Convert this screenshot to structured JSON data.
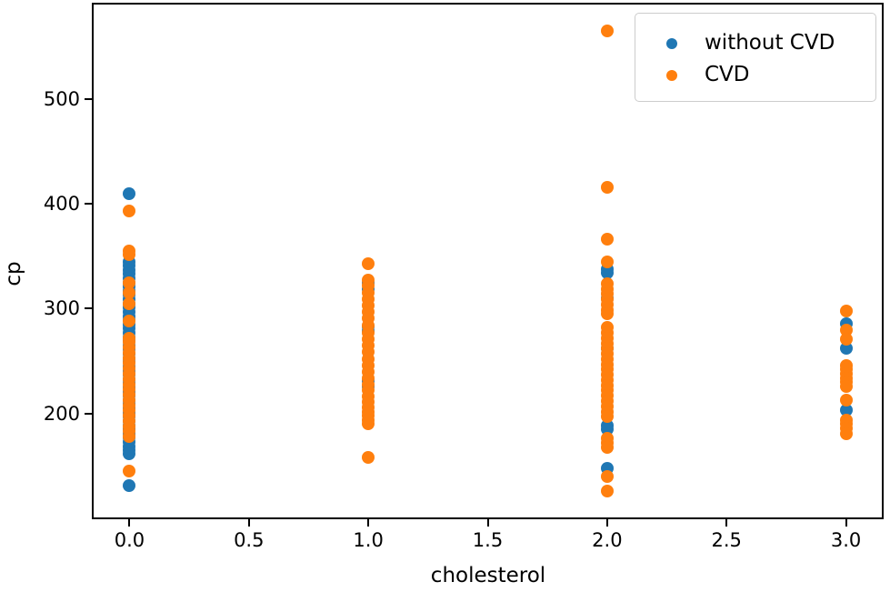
{
  "chart_data": {
    "type": "scatter",
    "title": "",
    "xlabel": "cholesterol",
    "ylabel": "cp",
    "xlim": [
      -0.15,
      3.15
    ],
    "ylim": [
      101,
      590
    ],
    "x_ticks": [
      0.0,
      0.5,
      1.0,
      1.5,
      2.0,
      2.5,
      3.0
    ],
    "x_tick_labels": [
      "0.0",
      "0.5",
      "1.0",
      "1.5",
      "2.0",
      "2.5",
      "3.0"
    ],
    "y_ticks": [
      200,
      300,
      400,
      500
    ],
    "y_tick_labels": [
      "200",
      "300",
      "400",
      "500"
    ],
    "grid": false,
    "legend_position": "upper right",
    "axis_color": "#000000",
    "legend_border_color": "#cccccc",
    "series": [
      {
        "name": "without CVD",
        "color": "#1f77b4",
        "points": [
          [
            0,
            410
          ],
          [
            0,
            345
          ],
          [
            0,
            341
          ],
          [
            0,
            337
          ],
          [
            0,
            333
          ],
          [
            0,
            329
          ],
          [
            0,
            325
          ],
          [
            0,
            321
          ],
          [
            0,
            317
          ],
          [
            0,
            313
          ],
          [
            0,
            309
          ],
          [
            0,
            305
          ],
          [
            0,
            301
          ],
          [
            0,
            297
          ],
          [
            0,
            293
          ],
          [
            0,
            289
          ],
          [
            0,
            285
          ],
          [
            0,
            281
          ],
          [
            0,
            277
          ],
          [
            0,
            273
          ],
          [
            0,
            269
          ],
          [
            0,
            265
          ],
          [
            0,
            261
          ],
          [
            0,
            257
          ],
          [
            0,
            253
          ],
          [
            0,
            249
          ],
          [
            0,
            245
          ],
          [
            0,
            241
          ],
          [
            0,
            237
          ],
          [
            0,
            233
          ],
          [
            0,
            229
          ],
          [
            0,
            225
          ],
          [
            0,
            221
          ],
          [
            0,
            217
          ],
          [
            0,
            213
          ],
          [
            0,
            209
          ],
          [
            0,
            205
          ],
          [
            0,
            201
          ],
          [
            0,
            197
          ],
          [
            0,
            193
          ],
          [
            0,
            189
          ],
          [
            0,
            185
          ],
          [
            0,
            181
          ],
          [
            0,
            177
          ],
          [
            0,
            173
          ],
          [
            0,
            169
          ],
          [
            0,
            165
          ],
          [
            0,
            162
          ],
          [
            0,
            131
          ],
          [
            1,
            325
          ],
          [
            1,
            319
          ],
          [
            1,
            283
          ],
          [
            1,
            279
          ],
          [
            1,
            231
          ],
          [
            1,
            226
          ],
          [
            2,
            338
          ],
          [
            2,
            334
          ],
          [
            2,
            310
          ],
          [
            2,
            262
          ],
          [
            2,
            189
          ],
          [
            2,
            185
          ],
          [
            2,
            148
          ],
          [
            3,
            286
          ],
          [
            3,
            262
          ],
          [
            3,
            203
          ]
        ]
      },
      {
        "name": "CVD",
        "color": "#ff7f0e",
        "points": [
          [
            0,
            393
          ],
          [
            0,
            355
          ],
          [
            0,
            352
          ],
          [
            0,
            325
          ],
          [
            0,
            315
          ],
          [
            0,
            305
          ],
          [
            0,
            288
          ],
          [
            0,
            272
          ],
          [
            0,
            268
          ],
          [
            0,
            263
          ],
          [
            0,
            258
          ],
          [
            0,
            253
          ],
          [
            0,
            248
          ],
          [
            0,
            243
          ],
          [
            0,
            238
          ],
          [
            0,
            233
          ],
          [
            0,
            228
          ],
          [
            0,
            223
          ],
          [
            0,
            218
          ],
          [
            0,
            213
          ],
          [
            0,
            208
          ],
          [
            0,
            203
          ],
          [
            0,
            198
          ],
          [
            0,
            193
          ],
          [
            0,
            188
          ],
          [
            0,
            183
          ],
          [
            0,
            178
          ],
          [
            0,
            145
          ],
          [
            1,
            343
          ],
          [
            1,
            327
          ],
          [
            1,
            322
          ],
          [
            1,
            315
          ],
          [
            1,
            309
          ],
          [
            1,
            303
          ],
          [
            1,
            297
          ],
          [
            1,
            291
          ],
          [
            1,
            284
          ],
          [
            1,
            277
          ],
          [
            1,
            271
          ],
          [
            1,
            265
          ],
          [
            1,
            259
          ],
          [
            1,
            252
          ],
          [
            1,
            246
          ],
          [
            1,
            240
          ],
          [
            1,
            234
          ],
          [
            1,
            228
          ],
          [
            1,
            222
          ],
          [
            1,
            216
          ],
          [
            1,
            211
          ],
          [
            1,
            206
          ],
          [
            1,
            202
          ],
          [
            1,
            198
          ],
          [
            1,
            194
          ],
          [
            1,
            190
          ],
          [
            1,
            158
          ],
          [
            2,
            565
          ],
          [
            2,
            416
          ],
          [
            2,
            366
          ],
          [
            2,
            345
          ],
          [
            2,
            324
          ],
          [
            2,
            319
          ],
          [
            2,
            314
          ],
          [
            2,
            309
          ],
          [
            2,
            304
          ],
          [
            2,
            299
          ],
          [
            2,
            295
          ],
          [
            2,
            282
          ],
          [
            2,
            277
          ],
          [
            2,
            272
          ],
          [
            2,
            267
          ],
          [
            2,
            262
          ],
          [
            2,
            257
          ],
          [
            2,
            252
          ],
          [
            2,
            247
          ],
          [
            2,
            242
          ],
          [
            2,
            237
          ],
          [
            2,
            232
          ],
          [
            2,
            227
          ],
          [
            2,
            222
          ],
          [
            2,
            217
          ],
          [
            2,
            212
          ],
          [
            2,
            207
          ],
          [
            2,
            202
          ],
          [
            2,
            197
          ],
          [
            2,
            176
          ],
          [
            2,
            172
          ],
          [
            2,
            168
          ],
          [
            2,
            140
          ],
          [
            2,
            126
          ],
          [
            3,
            298
          ],
          [
            3,
            280
          ],
          [
            3,
            271
          ],
          [
            3,
            246
          ],
          [
            3,
            242
          ],
          [
            3,
            238
          ],
          [
            3,
            234
          ],
          [
            3,
            230
          ],
          [
            3,
            226
          ],
          [
            3,
            213
          ],
          [
            3,
            194
          ],
          [
            3,
            190
          ],
          [
            3,
            186
          ],
          [
            3,
            181
          ]
        ]
      }
    ]
  }
}
